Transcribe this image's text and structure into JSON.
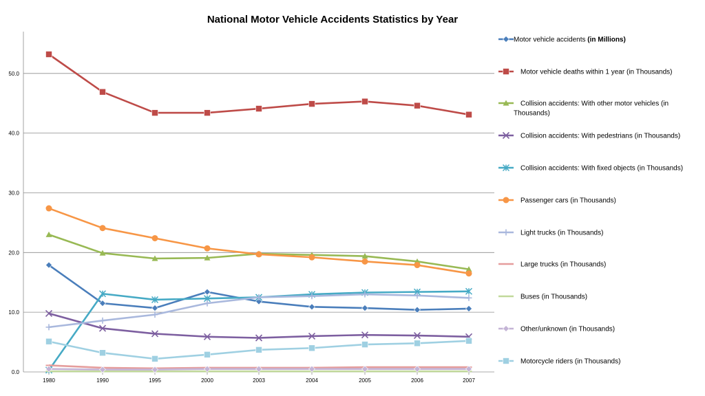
{
  "chart_data": {
    "type": "line",
    "title": "National Motor Vehicle Accidents Statistics by Year",
    "xlabel": "",
    "ylabel": "",
    "categories": [
      "1980",
      "1990",
      "1995",
      "2000",
      "2003",
      "2004",
      "2005",
      "2006",
      "2007"
    ],
    "ylim": [
      0,
      57
    ],
    "yticks": [
      "0.0",
      "10.0",
      "20.0",
      "30.0",
      "40.0",
      "50.0"
    ],
    "ytick_values": [
      0,
      10,
      20,
      30,
      40,
      50
    ],
    "grid": true,
    "legend_position": "right",
    "series": [
      {
        "name": "Motor vehicle accidents",
        "suffix": "(in Millions)",
        "suffix_bold": true,
        "color": "#4a7ebb",
        "marker": "diamond",
        "values": [
          17.9,
          11.5,
          10.7,
          13.4,
          11.8,
          10.9,
          10.7,
          10.4,
          10.6
        ]
      },
      {
        "name": "Motor vehicle deaths within 1 year",
        "suffix": "(in Thousands)",
        "suffix_bold": false,
        "color": "#be4b48",
        "marker": "square",
        "values": [
          53.2,
          46.9,
          43.4,
          43.4,
          44.1,
          44.9,
          45.3,
          44.6,
          43.1
        ]
      },
      {
        "name": "Collision accidents: With other motor vehicles",
        "suffix": "(in Thousands)",
        "suffix_bold": false,
        "color": "#98b954",
        "marker": "triangle",
        "values": [
          23.0,
          19.9,
          19.0,
          19.1,
          19.8,
          19.6,
          19.4,
          18.5,
          17.2
        ]
      },
      {
        "name": "Collision accidents: With pedestrians",
        "suffix": "(in Thousands)",
        "suffix_bold": false,
        "color": "#7d5fa0",
        "marker": "x",
        "values": [
          9.8,
          7.3,
          6.4,
          5.9,
          5.7,
          6.0,
          6.2,
          6.1,
          5.9
        ]
      },
      {
        "name": "Collision accidents: With fixed objects",
        "suffix": "(in Thousands)",
        "suffix_bold": false,
        "color": "#46aac5",
        "marker": "star",
        "values": [
          0.3,
          13.1,
          12.1,
          12.3,
          12.5,
          13.0,
          13.3,
          13.4,
          13.5
        ]
      },
      {
        "name": "Passenger cars",
        "suffix": "(in Thousands)",
        "suffix_bold": false,
        "color": "#f79646",
        "marker": "circle",
        "values": [
          27.4,
          24.1,
          22.4,
          20.7,
          19.7,
          19.2,
          18.5,
          17.9,
          16.5
        ]
      },
      {
        "name": "Light trucks",
        "suffix": "(in Thousands)",
        "suffix_bold": false,
        "color": "#a9b8dd",
        "marker": "plus",
        "values": [
          7.5,
          8.6,
          9.6,
          11.5,
          12.5,
          12.7,
          13.0,
          12.8,
          12.4
        ]
      },
      {
        "name": "Large trucks",
        "suffix": "(in Thousands)",
        "suffix_bold": false,
        "color": "#e59d9c",
        "marker": "dash",
        "values": [
          1.1,
          0.7,
          0.6,
          0.7,
          0.7,
          0.7,
          0.8,
          0.8,
          0.8
        ]
      },
      {
        "name": "Buses",
        "suffix": "(in Thousands)",
        "suffix_bold": false,
        "color": "#c1d99a",
        "marker": "dash",
        "values": [
          0.1,
          0.1,
          0.1,
          0.1,
          0.1,
          0.1,
          0.1,
          0.1,
          0.1
        ]
      },
      {
        "name": "Other/unknown",
        "suffix": "(in Thousands)",
        "suffix_bold": false,
        "color": "#c4b4d6",
        "marker": "diamond",
        "values": [
          0.5,
          0.4,
          0.4,
          0.5,
          0.5,
          0.5,
          0.5,
          0.5,
          0.5
        ]
      },
      {
        "name": "Motorcycle riders",
        "suffix": "(in Thousands)",
        "suffix_bold": false,
        "color": "#9fd0e2",
        "marker": "square",
        "values": [
          5.1,
          3.2,
          2.2,
          2.9,
          3.7,
          4.0,
          4.6,
          4.8,
          5.2
        ]
      }
    ]
  }
}
